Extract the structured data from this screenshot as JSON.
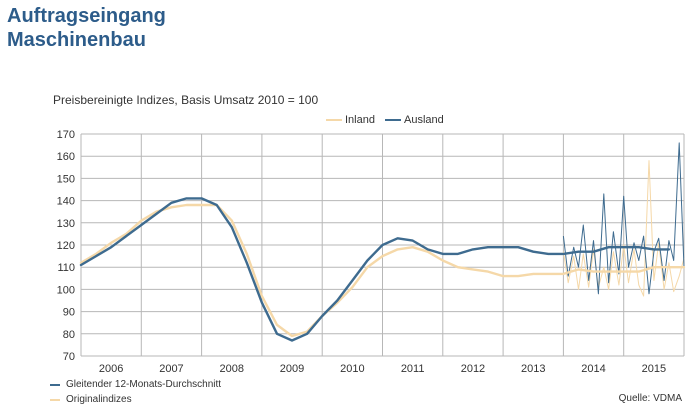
{
  "header": {
    "title_line1": "Auftragseingang",
    "title_line2": "Maschinenbau"
  },
  "footer": {
    "legend_moving_avg": "Gleitender 12-Monats-Durchschnitt",
    "legend_original": "Originalindizes",
    "source": "Quelle: VDMA"
  },
  "colors": {
    "inland": "#f5d8a8",
    "ausland": "#3e6b8f",
    "grid": "#b7b7b7",
    "title": "#2d5c8a"
  },
  "chart_data": {
    "type": "line",
    "title": "Preisbereinigte Indizes, Basis Umsatz 2010 = 100",
    "xlabel": "",
    "ylabel": "",
    "ylim": [
      70,
      170
    ],
    "yticks": [
      70,
      80,
      90,
      100,
      110,
      120,
      130,
      140,
      150,
      160,
      170
    ],
    "xlim": [
      2005.5,
      2015.5
    ],
    "xticks": [
      "2006",
      "2007",
      "2008",
      "2009",
      "2010",
      "2011",
      "2012",
      "2013",
      "2014",
      "2015"
    ],
    "grid": true,
    "legend_position": "top",
    "series": [
      {
        "name": "Inland",
        "kind": "moving_average",
        "x": [
          2005.5,
          2005.75,
          2006.0,
          2006.25,
          2006.5,
          2006.75,
          2007.0,
          2007.25,
          2007.5,
          2007.75,
          2008.0,
          2008.25,
          2008.5,
          2008.75,
          2009.0,
          2009.25,
          2009.5,
          2009.75,
          2010.0,
          2010.25,
          2010.5,
          2010.75,
          2011.0,
          2011.25,
          2011.5,
          2011.75,
          2012.0,
          2012.25,
          2012.5,
          2012.75,
          2013.0,
          2013.25,
          2013.5,
          2013.75,
          2014.0,
          2014.25,
          2014.5,
          2014.75,
          2015.0,
          2015.25,
          2015.5
        ],
        "y": [
          112,
          116,
          121,
          125,
          131,
          135,
          137,
          138,
          138,
          138,
          131,
          116,
          97,
          84,
          79,
          81,
          88,
          94,
          101,
          110,
          115,
          118,
          119,
          117,
          113,
          110,
          109,
          108,
          106,
          106,
          107,
          107,
          107,
          109,
          108,
          108,
          108,
          108,
          110,
          110,
          110
        ]
      },
      {
        "name": "Ausland",
        "kind": "moving_average",
        "x": [
          2005.5,
          2005.75,
          2006.0,
          2006.25,
          2006.5,
          2006.75,
          2007.0,
          2007.25,
          2007.5,
          2007.75,
          2008.0,
          2008.25,
          2008.5,
          2008.75,
          2009.0,
          2009.25,
          2009.5,
          2009.75,
          2010.0,
          2010.25,
          2010.5,
          2010.75,
          2011.0,
          2011.25,
          2011.5,
          2011.75,
          2012.0,
          2012.25,
          2012.5,
          2012.75,
          2013.0,
          2013.25,
          2013.5,
          2013.75,
          2014.0,
          2014.25,
          2014.5,
          2014.75,
          2015.0,
          2015.25
        ],
        "y": [
          111,
          115,
          119,
          124,
          129,
          134,
          139,
          141,
          141,
          138,
          128,
          112,
          94,
          80,
          77,
          80,
          88,
          95,
          104,
          113,
          120,
          123,
          122,
          118,
          116,
          116,
          118,
          119,
          119,
          119,
          117,
          116,
          116,
          117,
          117,
          119,
          119,
          119,
          118,
          118
        ]
      },
      {
        "name": "Inland",
        "kind": "original",
        "x": [
          2013.5,
          2013.58,
          2013.67,
          2013.75,
          2013.83,
          2013.92,
          2014.0,
          2014.08,
          2014.17,
          2014.25,
          2014.33,
          2014.42,
          2014.5,
          2014.58,
          2014.67,
          2014.75,
          2014.83,
          2014.92,
          2015.0,
          2015.08,
          2015.17,
          2015.25,
          2015.33,
          2015.42,
          2015.5
        ],
        "y": [
          117,
          103,
          115,
          100,
          116,
          101,
          118,
          101,
          110,
          100,
          117,
          102,
          120,
          103,
          118,
          102,
          97,
          158,
          104,
          121,
          100,
          112,
          99,
          106,
          114
        ]
      },
      {
        "name": "Ausland",
        "kind": "original",
        "x": [
          2013.5,
          2013.58,
          2013.67,
          2013.75,
          2013.83,
          2013.92,
          2014.0,
          2014.08,
          2014.17,
          2014.25,
          2014.33,
          2014.42,
          2014.5,
          2014.58,
          2014.67,
          2014.75,
          2014.83,
          2014.92,
          2015.0,
          2015.08,
          2015.17,
          2015.25,
          2015.33,
          2015.42,
          2015.5
        ],
        "y": [
          124,
          106,
          119,
          110,
          129,
          104,
          122,
          98,
          143,
          103,
          126,
          107,
          142,
          110,
          121,
          113,
          124,
          98,
          117,
          123,
          104,
          122,
          113,
          166,
          110
        ]
      }
    ]
  }
}
